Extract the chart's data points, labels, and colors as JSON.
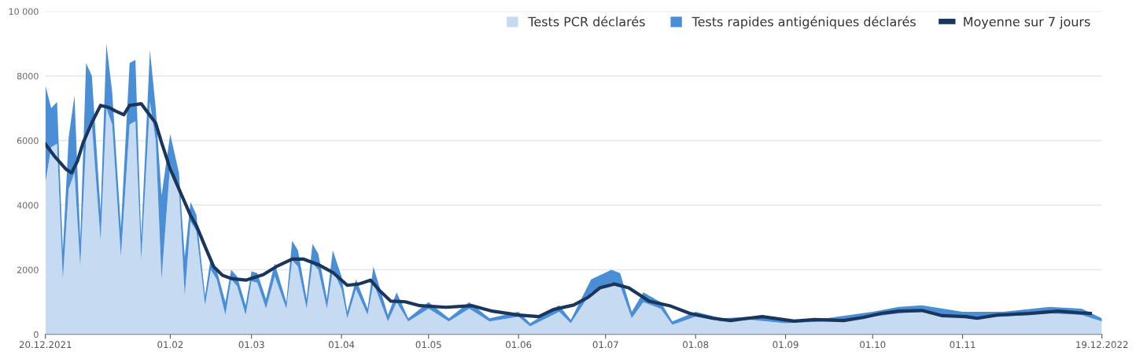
{
  "chart_data": {
    "type": "area",
    "stacked": true,
    "grid": "y",
    "legend": "top right",
    "ylim": [
      0,
      10000
    ],
    "yticks": [
      0,
      2000,
      4000,
      6000,
      8000,
      {
        "value": 10000,
        "label": "10 000"
      }
    ],
    "xlim": [
      "2021-12-20",
      "2022-12-19"
    ],
    "xticks": [
      {
        "value": "2021-12-20",
        "label": "20.12.2021"
      },
      {
        "value": "2022-02-01",
        "label": "01.02"
      },
      {
        "value": "2022-03-01",
        "label": "01.03"
      },
      {
        "value": "2022-04-01",
        "label": "01.04"
      },
      {
        "value": "2022-05-01",
        "label": "01.05"
      },
      {
        "value": "2022-06-01",
        "label": "01.06"
      },
      {
        "value": "2022-07-01",
        "label": "01.07"
      },
      {
        "value": "2022-08-01",
        "label": "01.08"
      },
      {
        "value": "2022-09-01",
        "label": "01.09"
      },
      {
        "value": "2022-10-01",
        "label": "01.10"
      },
      {
        "value": "2022-11-01",
        "label": "01.11"
      },
      {
        "value": "2022-12-19",
        "label": "19.12.2022"
      }
    ],
    "x": [
      "2021-12-20",
      "2021-12-22",
      "2021-12-24",
      "2021-12-26",
      "2021-12-28",
      "2021-12-30",
      "2022-01-01",
      "2022-01-03",
      "2022-01-05",
      "2022-01-08",
      "2022-01-10",
      "2022-01-12",
      "2022-01-15",
      "2022-01-18",
      "2022-01-20",
      "2022-01-22",
      "2022-01-25",
      "2022-01-27",
      "2022-01-29",
      "2022-02-01",
      "2022-02-04",
      "2022-02-06",
      "2022-02-08",
      "2022-02-10",
      "2022-02-13",
      "2022-02-15",
      "2022-02-17",
      "2022-02-20",
      "2022-02-22",
      "2022-02-24",
      "2022-02-27",
      "2022-03-01",
      "2022-03-03",
      "2022-03-06",
      "2022-03-09",
      "2022-03-13",
      "2022-03-15",
      "2022-03-17",
      "2022-03-20",
      "2022-03-22",
      "2022-03-24",
      "2022-03-27",
      "2022-03-29",
      "2022-04-01",
      "2022-04-03",
      "2022-04-06",
      "2022-04-10",
      "2022-04-12",
      "2022-04-17",
      "2022-04-20",
      "2022-04-24",
      "2022-05-01",
      "2022-05-08",
      "2022-05-15",
      "2022-05-22",
      "2022-06-01",
      "2022-06-05",
      "2022-06-15",
      "2022-06-19",
      "2022-06-26",
      "2022-07-03",
      "2022-07-06",
      "2022-07-10",
      "2022-07-14",
      "2022-07-20",
      "2022-07-24",
      "2022-08-01",
      "2022-08-10",
      "2022-08-20",
      "2022-09-01",
      "2022-09-15",
      "2022-10-01",
      "2022-10-10",
      "2022-10-18",
      "2022-11-01",
      "2022-11-15",
      "2022-12-01",
      "2022-12-12",
      "2022-12-19"
    ],
    "series": [
      {
        "name": "Tests PCR déclarés",
        "color": "#c6daf1",
        "values": [
          4700,
          5800,
          5900,
          1700,
          4500,
          5000,
          2100,
          6000,
          6500,
          2900,
          7000,
          6500,
          2400,
          6500,
          6600,
          2300,
          7200,
          6000,
          1700,
          5300,
          4500,
          1200,
          3500,
          3200,
          900,
          2000,
          1700,
          600,
          1700,
          1500,
          600,
          1650,
          1600,
          800,
          1800,
          800,
          2300,
          2100,
          800,
          2200,
          2000,
          800,
          2000,
          1400,
          500,
          1400,
          600,
          1600,
          400,
          1000,
          400,
          800,
          400,
          800,
          400,
          550,
          250,
          700,
          350,
          1300,
          1600,
          1500,
          500,
          1000,
          800,
          300,
          550,
          400,
          450,
          350,
          400,
          550,
          650,
          700,
          550,
          550,
          650,
          600,
          400
        ]
      },
      {
        "name": "Tests rapides antigéniques déclarés",
        "color": "#4a8fd6",
        "values": [
          3000,
          1200,
          1300,
          900,
          1600,
          2400,
          800,
          2400,
          1500,
          900,
          2000,
          1000,
          900,
          1900,
          1900,
          700,
          1600,
          1000,
          2600,
          900,
          500,
          1200,
          600,
          500,
          300,
          400,
          300,
          400,
          300,
          300,
          300,
          300,
          300,
          300,
          400,
          200,
          600,
          500,
          300,
          600,
          500,
          300,
          600,
          400,
          200,
          300,
          200,
          500,
          200,
          300,
          100,
          200,
          100,
          200,
          100,
          150,
          100,
          200,
          100,
          400,
          400,
          400,
          200,
          300,
          200,
          100,
          150,
          100,
          100,
          100,
          100,
          150,
          200,
          200,
          150,
          150,
          200,
          200,
          100
        ]
      },
      {
        "name": "Moyenne sur 7 jours",
        "type": "line",
        "color": "#1b365d",
        "x": [
          "2021-12-20",
          "2021-12-23",
          "2021-12-27",
          "2021-12-29",
          "2021-12-31",
          "2022-01-02",
          "2022-01-05",
          "2022-01-08",
          "2022-01-11",
          "2022-01-13",
          "2022-01-16",
          "2022-01-18",
          "2022-01-22",
          "2022-01-24",
          "2022-01-27",
          "2022-01-29",
          "2022-02-01",
          "2022-02-04",
          "2022-02-08",
          "2022-02-10",
          "2022-02-13",
          "2022-02-16",
          "2022-02-19",
          "2022-02-22",
          "2022-02-27",
          "2022-03-05",
          "2022-03-10",
          "2022-03-15",
          "2022-03-19",
          "2022-03-24",
          "2022-03-29",
          "2022-04-03",
          "2022-04-07",
          "2022-04-11",
          "2022-04-14",
          "2022-04-18",
          "2022-04-23",
          "2022-04-28",
          "2022-05-07",
          "2022-05-16",
          "2022-05-23",
          "2022-06-01",
          "2022-06-08",
          "2022-06-13",
          "2022-06-20",
          "2022-06-25",
          "2022-06-29",
          "2022-07-04",
          "2022-07-09",
          "2022-07-16",
          "2022-07-23",
          "2022-07-30",
          "2022-08-07",
          "2022-08-13",
          "2022-08-19",
          "2022-08-24",
          "2022-09-04",
          "2022-09-11",
          "2022-09-21",
          "2022-09-28",
          "2022-10-04",
          "2022-10-10",
          "2022-10-18",
          "2022-10-25",
          "2022-11-02",
          "2022-11-06",
          "2022-11-13",
          "2022-11-24",
          "2022-12-04",
          "2022-12-11",
          "2022-12-15"
        ],
        "values": [
          5890,
          5530,
          5120,
          5000,
          5360,
          5940,
          6560,
          7090,
          7020,
          6920,
          6800,
          7090,
          7140,
          6900,
          6540,
          5940,
          5120,
          4500,
          3680,
          3370,
          2720,
          2090,
          1830,
          1730,
          1680,
          1850,
          2120,
          2330,
          2330,
          2160,
          1920,
          1520,
          1560,
          1680,
          1370,
          1030,
          1010,
          890,
          840,
          890,
          720,
          600,
          550,
          770,
          910,
          1150,
          1440,
          1560,
          1440,
          1030,
          890,
          650,
          500,
          430,
          500,
          550,
          410,
          460,
          430,
          530,
          650,
          720,
          740,
          580,
          550,
          500,
          600,
          650,
          720,
          670,
          650
        ]
      }
    ]
  }
}
